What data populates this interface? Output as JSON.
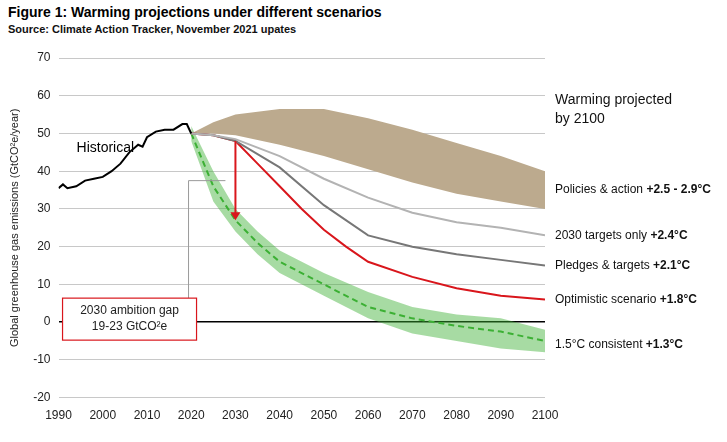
{
  "chart_data": {
    "type": "line",
    "title": "Figure 1: Warming projections under different scenarios",
    "subtitle": "Source: Climate Action Tracker, November 2021 upates",
    "y_label": "Global greenhouse gas emissions (GtCO²e/year)",
    "xlim": [
      1990,
      2100
    ],
    "xticks": [
      1990,
      2000,
      2010,
      2020,
      2030,
      2040,
      2050,
      2060,
      2070,
      2080,
      2090,
      2100
    ],
    "ylim": [
      -20,
      70
    ],
    "yticks": [
      -20,
      -10,
      0,
      10,
      20,
      30,
      40,
      50,
      60,
      70
    ],
    "grid": true,
    "right_label_title": [
      "Warming projected",
      "by 2100"
    ],
    "series": [
      {
        "name": "Historical",
        "color": "#000000",
        "x": [
          1990,
          1991,
          1992,
          1994,
          1996,
          1998,
          2000,
          2002,
          2004,
          2006,
          2008,
          2009,
          2010,
          2012,
          2014,
          2016,
          2018,
          2019,
          2020
        ],
        "values": [
          35.5,
          36.5,
          35.5,
          36,
          37.5,
          38,
          38.5,
          40,
          42,
          45,
          47,
          46.5,
          49,
          50.5,
          51,
          51,
          52.5,
          52.5,
          50
        ]
      },
      {
        "name": "Policies & action",
        "warming": "+2.5 - 2.9°C",
        "type": "area",
        "color": "#bcaa8e",
        "x": [
          2020,
          2025,
          2030,
          2040,
          2050,
          2060,
          2070,
          2080,
          2090,
          2100
        ],
        "upper": [
          50,
          53,
          55,
          56.5,
          56.5,
          54,
          51,
          47.5,
          44,
          40
        ],
        "lower": [
          50,
          50,
          49.5,
          47,
          44,
          40.5,
          37,
          34,
          32,
          30
        ]
      },
      {
        "name": "2030 targets only",
        "warming": "+2.4°C",
        "color": "#b3b3b3",
        "x": [
          2020,
          2025,
          2030,
          2040,
          2050,
          2060,
          2070,
          2080,
          2090,
          2100
        ],
        "values": [
          50,
          49.5,
          48.5,
          44,
          38,
          33,
          29,
          26.5,
          25,
          23
        ]
      },
      {
        "name": "Pledges & targets",
        "warming": "+2.1°C",
        "color": "#777777",
        "x": [
          2020,
          2025,
          2030,
          2040,
          2050,
          2060,
          2070,
          2080,
          2090,
          2100
        ],
        "values": [
          50,
          49.5,
          48,
          41,
          31,
          23,
          20,
          18,
          16.5,
          15
        ]
      },
      {
        "name": "Optimistic scenario",
        "warming": "+1.8°C",
        "color": "#d9161c",
        "x": [
          2020,
          2025,
          2030,
          2035,
          2040,
          2045,
          2050,
          2055,
          2060,
          2070,
          2080,
          2090,
          2100
        ],
        "values": [
          50,
          49.5,
          48,
          42,
          36,
          30,
          24.5,
          20,
          16,
          12,
          9,
          7,
          6
        ]
      },
      {
        "name": "1.5°C consistent",
        "warming": "+1.3°C",
        "color": "#3cb034",
        "line_style": "dashed",
        "x": [
          2020,
          2025,
          2030,
          2035,
          2040,
          2050,
          2060,
          2070,
          2080,
          2090,
          2100
        ],
        "values": [
          50,
          36,
          27,
          21,
          16,
          10,
          4,
          1,
          -1,
          -2.5,
          -5
        ],
        "upper": [
          52,
          40,
          30,
          24,
          19,
          13,
          8,
          4,
          2,
          1,
          -2
        ],
        "lower": [
          48,
          32,
          24,
          18,
          13,
          7,
          1,
          -3,
          -5,
          -7,
          -8
        ]
      }
    ],
    "ambition_gap": {
      "x": 2030,
      "from": 48,
      "to": 27,
      "label": [
        "2030 ambition gap",
        "19-23 GtCO²e"
      ]
    }
  }
}
